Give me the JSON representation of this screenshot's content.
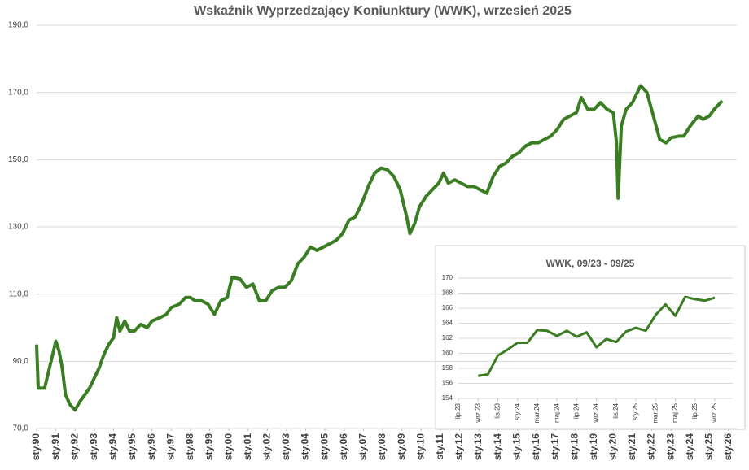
{
  "chart_data": [
    {
      "type": "line",
      "title": "Wskaźnik Wyprzedzający Koniunktury (WWK), wrzesień 2025",
      "x": [
        "1990-01",
        "1990-02",
        "1990-06",
        "1990-10",
        "1991-01",
        "1991-03",
        "1991-05",
        "1991-07",
        "1991-10",
        "1992-01",
        "1992-04",
        "1992-07",
        "1992-10",
        "1993-01",
        "1993-04",
        "1993-07",
        "1993-10",
        "1994-01",
        "1994-03",
        "1994-05",
        "1994-08",
        "1994-11",
        "1995-02",
        "1995-06",
        "1995-10",
        "1996-01",
        "1996-06",
        "1996-10",
        "1997-01",
        "1997-06",
        "1997-10",
        "1998-01",
        "1998-04",
        "1998-08",
        "1998-12",
        "1999-04",
        "1999-08",
        "1999-12",
        "2000-03",
        "2000-08",
        "2000-12",
        "2001-04",
        "2001-08",
        "2001-12",
        "2002-04",
        "2002-08",
        "2002-12",
        "2003-04",
        "2003-08",
        "2003-12",
        "2004-04",
        "2004-08",
        "2004-12",
        "2005-04",
        "2005-08",
        "2005-12",
        "2006-04",
        "2006-08",
        "2006-12",
        "2007-04",
        "2007-08",
        "2007-12",
        "2008-04",
        "2008-08",
        "2008-12",
        "2009-04",
        "2009-06",
        "2009-09",
        "2009-12",
        "2010-04",
        "2010-08",
        "2010-12",
        "2011-03",
        "2011-06",
        "2011-10",
        "2012-02",
        "2012-06",
        "2012-10",
        "2013-02",
        "2013-06",
        "2013-10",
        "2014-02",
        "2014-06",
        "2014-10",
        "2015-02",
        "2015-06",
        "2015-10",
        "2016-02",
        "2016-06",
        "2016-10",
        "2017-02",
        "2017-06",
        "2017-10",
        "2018-02",
        "2018-05",
        "2018-09",
        "2019-01",
        "2019-05",
        "2019-09",
        "2020-01",
        "2020-03",
        "2020-04",
        "2020-06",
        "2020-09",
        "2021-01",
        "2021-06",
        "2021-10",
        "2022-02",
        "2022-06",
        "2022-10",
        "2023-01",
        "2023-06",
        "2023-09",
        "2024-01",
        "2024-06",
        "2024-09",
        "2025-01",
        "2025-04",
        "2025-09"
      ],
      "series": [
        {
          "color": "#3a7d22",
          "values": [
            95,
            82,
            82,
            90,
            96,
            93,
            88,
            80,
            77,
            75.5,
            78,
            80,
            82,
            85,
            88,
            92,
            95,
            97,
            103,
            99,
            102,
            99,
            99,
            101,
            100,
            102,
            103,
            104,
            106,
            107,
            109,
            109,
            108,
            108,
            107,
            104,
            108,
            109,
            115,
            114.5,
            112,
            113,
            108,
            108,
            111,
            112,
            112,
            114,
            119,
            121,
            124,
            123,
            124,
            125,
            126,
            128,
            132,
            133,
            137,
            142,
            146,
            147.5,
            147,
            145,
            141,
            133,
            128,
            131,
            136,
            139,
            141,
            143,
            146,
            143,
            144,
            143,
            142,
            142,
            141,
            140,
            145,
            148,
            149,
            151,
            152,
            154,
            155,
            155,
            156,
            157,
            159,
            162,
            163,
            164,
            168.5,
            165,
            165,
            167,
            165,
            164,
            155,
            138.5,
            160,
            165,
            167,
            172,
            170,
            163,
            156,
            155,
            156.5,
            157,
            157,
            160,
            163,
            162,
            163,
            165,
            167.5
          ]
        }
      ],
      "xlim": [
        "1990-01",
        "2026-01"
      ],
      "xticks": [
        {
          "value": "1990-01",
          "label": "sty.90"
        },
        {
          "value": "1991-01",
          "label": "sty.91"
        },
        {
          "value": "1992-01",
          "label": "sty.92"
        },
        {
          "value": "1993-01",
          "label": "sty.93"
        },
        {
          "value": "1994-01",
          "label": "sty.94"
        },
        {
          "value": "1995-01",
          "label": "sty.95"
        },
        {
          "value": "1996-01",
          "label": "sty.96"
        },
        {
          "value": "1997-01",
          "label": "sty.97"
        },
        {
          "value": "1998-01",
          "label": "sty.98"
        },
        {
          "value": "1999-01",
          "label": "sty.99"
        },
        {
          "value": "2000-01",
          "label": "sty.00"
        },
        {
          "value": "2001-01",
          "label": "sty.01"
        },
        {
          "value": "2002-01",
          "label": "sty.02"
        },
        {
          "value": "2003-01",
          "label": "sty.03"
        },
        {
          "value": "2004-01",
          "label": "sty.04"
        },
        {
          "value": "2005-01",
          "label": "sty.05"
        },
        {
          "value": "2006-01",
          "label": "sty.06"
        },
        {
          "value": "2007-01",
          "label": "sty.07"
        },
        {
          "value": "2008-01",
          "label": "sty.08"
        },
        {
          "value": "2009-01",
          "label": "sty.09"
        },
        {
          "value": "2010-01",
          "label": "sty.10"
        },
        {
          "value": "2011-01",
          "label": "sty.11"
        },
        {
          "value": "2012-01",
          "label": "sty.12"
        },
        {
          "value": "2013-01",
          "label": "sty.13"
        },
        {
          "value": "2014-01",
          "label": "sty.14"
        },
        {
          "value": "2015-01",
          "label": "sty.15"
        },
        {
          "value": "2016-01",
          "label": "sty.16"
        },
        {
          "value": "2017-01",
          "label": "sty.17"
        },
        {
          "value": "2018-01",
          "label": "sty.18"
        },
        {
          "value": "2019-01",
          "label": "sty.19"
        },
        {
          "value": "2020-01",
          "label": "sty.20"
        },
        {
          "value": "2021-01",
          "label": "sty.21"
        },
        {
          "value": "2022-01",
          "label": "sty.22"
        },
        {
          "value": "2023-01",
          "label": "sty.23"
        },
        {
          "value": "2024-01",
          "label": "sty.24"
        },
        {
          "value": "2025-01",
          "label": "sty.25"
        },
        {
          "value": "2026-01",
          "label": "sty.26"
        }
      ],
      "ylim": [
        70,
        190
      ],
      "yticks": [
        {
          "value": 70,
          "label": "70,0"
        },
        {
          "value": 90,
          "label": "90,0"
        },
        {
          "value": 110,
          "label": "110,0"
        },
        {
          "value": 130,
          "label": "130,0"
        },
        {
          "value": 150,
          "label": "150,0"
        },
        {
          "value": 170,
          "label": "170,0"
        },
        {
          "value": 190,
          "label": "190,0"
        }
      ],
      "grid": true
    },
    {
      "type": "line",
      "title": "WWK, 09/23 - 09/25",
      "x": [
        "2023-09",
        "2023-10",
        "2023-11",
        "2023-12",
        "2024-01",
        "2024-02",
        "2024-03",
        "2024-04",
        "2024-05",
        "2024-06",
        "2024-07",
        "2024-08",
        "2024-09",
        "2024-10",
        "2024-11",
        "2024-12",
        "2025-01",
        "2025-02",
        "2025-03",
        "2025-04",
        "2025-05",
        "2025-06",
        "2025-07",
        "2025-08",
        "2025-09"
      ],
      "series": [
        {
          "color": "#3a7d22",
          "values": [
            157,
            157.2,
            159.7,
            160.5,
            161.4,
            161.4,
            163.1,
            163,
            162.3,
            163,
            162.2,
            162.8,
            160.8,
            161.9,
            161.5,
            162.9,
            163.4,
            163,
            165.1,
            166.5,
            165,
            167.5,
            167.2,
            167,
            167.4
          ]
        }
      ],
      "xlim": [
        "2023-07",
        "2025-09"
      ],
      "xticks": [
        {
          "value": "2023-07",
          "label": "lip.23"
        },
        {
          "value": "2023-09",
          "label": "wrz.23"
        },
        {
          "value": "2023-11",
          "label": "lis.23"
        },
        {
          "value": "2024-01",
          "label": "sty.24"
        },
        {
          "value": "2024-03",
          "label": "mar.24"
        },
        {
          "value": "2024-05",
          "label": "maj.24"
        },
        {
          "value": "2024-07",
          "label": "lip.24"
        },
        {
          "value": "2024-09",
          "label": "wrz.24"
        },
        {
          "value": "2024-11",
          "label": "lis.24"
        },
        {
          "value": "2025-01",
          "label": "sty.25"
        },
        {
          "value": "2025-03",
          "label": "mar.25"
        },
        {
          "value": "2025-05",
          "label": "maj.25"
        },
        {
          "value": "2025-07",
          "label": "lip.25"
        },
        {
          "value": "2025-09",
          "label": "wrz.25"
        }
      ],
      "ylim": [
        154,
        170
      ],
      "yticks": [
        154,
        156,
        158,
        160,
        162,
        164,
        166,
        168,
        170
      ],
      "grid": true
    }
  ]
}
